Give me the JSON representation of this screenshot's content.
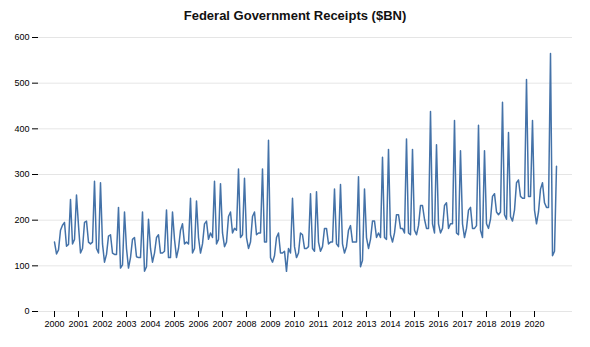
{
  "chart_data": {
    "type": "line",
    "title": "Federal Government Receipts ($BN)",
    "categories": [
      "2000",
      null,
      null,
      null,
      null,
      null,
      null,
      null,
      null,
      null,
      null,
      null,
      "2001",
      null,
      null,
      null,
      null,
      null,
      null,
      null,
      null,
      null,
      null,
      null,
      "2002",
      null,
      null,
      null,
      null,
      null,
      null,
      null,
      null,
      null,
      null,
      null,
      "2003",
      null,
      null,
      null,
      null,
      null,
      null,
      null,
      null,
      null,
      null,
      null,
      "2004",
      null,
      null,
      null,
      null,
      null,
      null,
      null,
      null,
      null,
      null,
      null,
      "2005",
      null,
      null,
      null,
      null,
      null,
      null,
      null,
      null,
      null,
      null,
      null,
      "2006",
      null,
      null,
      null,
      null,
      null,
      null,
      null,
      null,
      null,
      null,
      null,
      "2007",
      null,
      null,
      null,
      null,
      null,
      null,
      null,
      null,
      null,
      null,
      null,
      "2008",
      null,
      null,
      null,
      null,
      null,
      null,
      null,
      null,
      null,
      null,
      null,
      "2009",
      null,
      null,
      null,
      null,
      null,
      null,
      null,
      null,
      null,
      null,
      null,
      "2010",
      null,
      null,
      null,
      null,
      null,
      null,
      null,
      null,
      null,
      null,
      null,
      "2011",
      null,
      null,
      null,
      null,
      null,
      null,
      null,
      null,
      null,
      null,
      null,
      "2012",
      null,
      null,
      null,
      null,
      null,
      null,
      null,
      null,
      null,
      null,
      null,
      "2013",
      null,
      null,
      null,
      null,
      null,
      null,
      null,
      null,
      null,
      null,
      null,
      "2014",
      null,
      null,
      null,
      null,
      null,
      null,
      null,
      null,
      null,
      null,
      null,
      "2015",
      null,
      null,
      null,
      null,
      null,
      null,
      null,
      null,
      null,
      null,
      null,
      "2016",
      null,
      null,
      null,
      null,
      null,
      null,
      null,
      null,
      null,
      null,
      null,
      "2017",
      null,
      null,
      null,
      null,
      null,
      null,
      null,
      null,
      null,
      null,
      null,
      "2018",
      null,
      null,
      null,
      null,
      null,
      null,
      null,
      null,
      null,
      null,
      null,
      "2019",
      null,
      null,
      null,
      null,
      null,
      null,
      null,
      null,
      null,
      null,
      null,
      "2020",
      null,
      null,
      null,
      null,
      null,
      null,
      null,
      null,
      null,
      null,
      null
    ],
    "values": [
      152,
      126,
      135,
      178,
      189,
      195,
      143,
      147,
      245,
      148,
      158,
      255,
      188,
      128,
      138,
      195,
      198,
      152,
      148,
      152,
      285,
      138,
      128,
      282,
      148,
      108,
      125,
      165,
      168,
      128,
      125,
      125,
      228,
      95,
      102,
      218,
      138,
      95,
      118,
      158,
      162,
      120,
      118,
      118,
      218,
      88,
      98,
      202,
      138,
      108,
      128,
      162,
      168,
      128,
      128,
      132,
      222,
      118,
      118,
      218,
      158,
      118,
      138,
      178,
      192,
      148,
      152,
      148,
      248,
      128,
      138,
      242,
      162,
      128,
      148,
      192,
      198,
      158,
      172,
      162,
      285,
      148,
      158,
      280,
      172,
      142,
      152,
      208,
      218,
      172,
      182,
      178,
      312,
      162,
      168,
      292,
      162,
      138,
      152,
      208,
      218,
      168,
      172,
      172,
      312,
      152,
      152,
      375,
      118,
      108,
      122,
      162,
      172,
      128,
      128,
      132,
      88,
      138,
      128,
      248,
      142,
      118,
      128,
      172,
      168,
      138,
      138,
      142,
      258,
      138,
      132,
      262,
      152,
      132,
      142,
      182,
      182,
      148,
      152,
      152,
      268,
      148,
      142,
      278,
      148,
      128,
      142,
      178,
      188,
      152,
      152,
      152,
      295,
      98,
      112,
      268,
      162,
      138,
      158,
      198,
      198,
      162,
      172,
      162,
      338,
      162,
      158,
      355,
      168,
      152,
      172,
      212,
      212,
      182,
      182,
      172,
      378,
      172,
      168,
      355,
      178,
      168,
      188,
      232,
      232,
      202,
      182,
      182,
      438,
      192,
      172,
      365,
      192,
      172,
      182,
      232,
      238,
      182,
      192,
      192,
      418,
      172,
      168,
      352,
      192,
      162,
      182,
      222,
      228,
      182,
      182,
      188,
      408,
      178,
      162,
      352,
      192,
      182,
      202,
      252,
      258,
      218,
      212,
      218,
      458,
      212,
      202,
      392,
      208,
      198,
      222,
      282,
      288,
      252,
      248,
      248,
      508,
      252,
      252,
      418,
      222,
      192,
      218,
      268,
      282,
      238,
      228,
      228,
      565,
      122,
      132,
      318
    ],
    "color": "#4472a8",
    "ylim": [
      0,
      600
    ],
    "yticks": [
      0,
      100,
      200,
      300,
      400,
      500,
      600
    ],
    "grid": true
  }
}
